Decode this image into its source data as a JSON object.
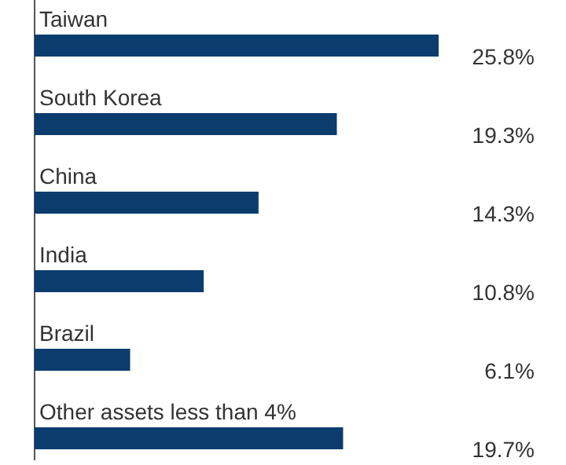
{
  "chart_data": {
    "type": "bar",
    "orientation": "horizontal",
    "categories": [
      "Taiwan",
      "South Korea",
      "China",
      "India",
      "Brazil",
      "Other assets less than 4%"
    ],
    "values": [
      25.8,
      19.3,
      14.3,
      10.8,
      6.1,
      19.7
    ],
    "value_labels": [
      "25.8%",
      "19.3%",
      "14.3%",
      "10.8%",
      "6.1%",
      "19.7%"
    ],
    "color": "#0b3c6e",
    "xlim": [
      0,
      25.8
    ]
  }
}
